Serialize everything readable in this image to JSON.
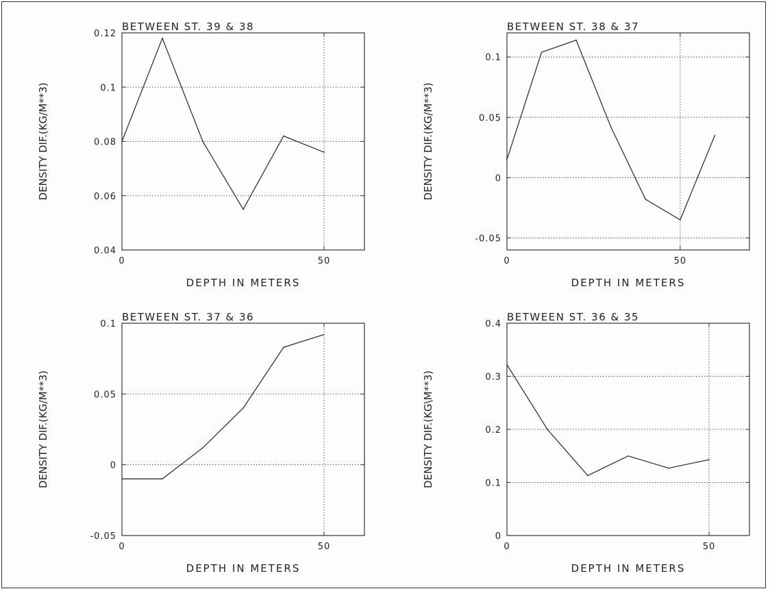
{
  "chart_data": [
    {
      "type": "line",
      "title": "BETWEEN ST. 39 & 38",
      "xlabel": "DEPTH IN METERS",
      "ylabel": "DENSITY DIF.(KG/M**3)",
      "xlim": [
        0,
        60
      ],
      "ylim": [
        0.04,
        0.12
      ],
      "xticks": [
        0,
        50
      ],
      "xtick_labels": [
        "0",
        "50"
      ],
      "yticks": [
        0.04,
        0.06,
        0.08,
        0.1,
        0.12
      ],
      "ytick_labels": [
        "0.04",
        "0.06",
        "0.08",
        "0.1",
        "0.12"
      ],
      "grid": true,
      "x": [
        0,
        10,
        20,
        30,
        40,
        50
      ],
      "y": [
        0.08,
        0.118,
        0.08,
        0.055,
        0.082,
        0.076
      ]
    },
    {
      "type": "line",
      "title": "BETWEEN ST. 38 & 37",
      "xlabel": "DEPTH IN METERS",
      "ylabel": "DENSITY DIF.(KG/M**3)",
      "xlim": [
        0,
        70
      ],
      "ylim": [
        -0.06,
        0.12
      ],
      "xticks": [
        0,
        50
      ],
      "xtick_labels": [
        "0",
        "50"
      ],
      "yticks": [
        -0.05,
        0,
        0.05,
        0.1
      ],
      "ytick_labels": [
        "-0.05",
        "0",
        "0.05",
        "0.1"
      ],
      "grid": true,
      "x": [
        0,
        10,
        20,
        30,
        40,
        50,
        60
      ],
      "y": [
        0.015,
        0.104,
        0.114,
        0.042,
        -0.018,
        -0.035,
        0.035
      ]
    },
    {
      "type": "line",
      "title": "BETWEEN ST. 37 & 36",
      "xlabel": "DEPTH IN METERS",
      "ylabel": "DENSITY DIF.(KG/M**3)",
      "xlim": [
        0,
        60
      ],
      "ylim": [
        -0.05,
        0.1
      ],
      "xticks": [
        0,
        50
      ],
      "xtick_labels": [
        "0",
        "50"
      ],
      "yticks": [
        -0.05,
        0,
        0.05,
        0.1
      ],
      "ytick_labels": [
        "-0.05",
        "0",
        "0.05",
        "0.1"
      ],
      "grid": true,
      "x": [
        0,
        10,
        20,
        30,
        40,
        50
      ],
      "y": [
        -0.01,
        -0.01,
        0.012,
        0.04,
        0.083,
        0.092
      ]
    },
    {
      "type": "line",
      "title": "BETWEEN ST. 36 & 35",
      "xlabel": "DEPTH IN METERS",
      "ylabel": "DENSITY DIF.(KG\\M**3)",
      "xlim": [
        0,
        60
      ],
      "ylim": [
        0,
        0.4
      ],
      "xticks": [
        0,
        50
      ],
      "xtick_labels": [
        "0",
        "50"
      ],
      "yticks": [
        0,
        0.1,
        0.2,
        0.3,
        0.4
      ],
      "ytick_labels": [
        "0",
        "0.1",
        "0.2",
        "0.3",
        "0.4"
      ],
      "grid": true,
      "x": [
        0,
        10,
        20,
        30,
        40,
        50
      ],
      "y": [
        0.322,
        0.2,
        0.113,
        0.15,
        0.127,
        0.143
      ]
    }
  ]
}
